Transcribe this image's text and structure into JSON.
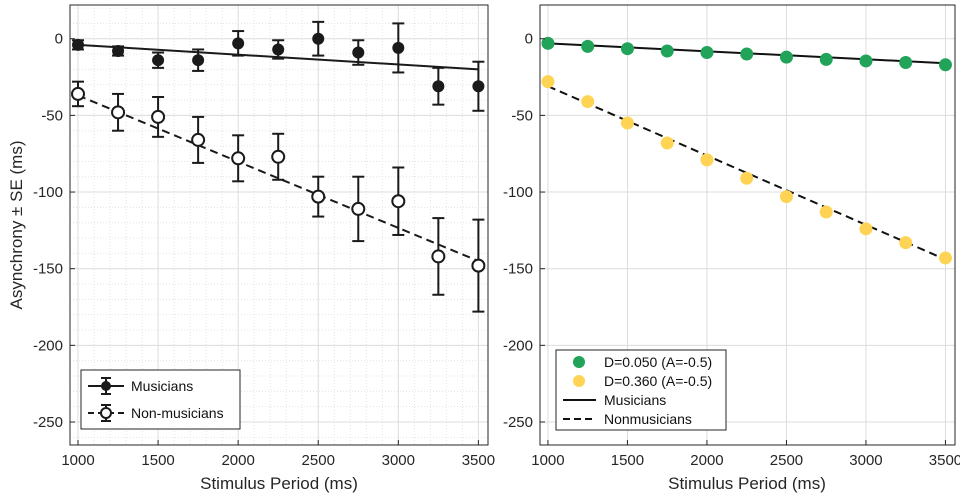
{
  "chart_data": [
    {
      "type": "scatter",
      "panel": "left",
      "xlabel": "Stimulus Period (ms)",
      "ylabel": "Asynchrony ± SE (ms)",
      "xlim": [
        950,
        3560
      ],
      "ylim": [
        -265,
        22
      ],
      "xticks": [
        1000,
        1500,
        2000,
        2500,
        3000,
        3500
      ],
      "yticks": [
        0,
        -50,
        -100,
        -150,
        -200,
        -250
      ],
      "xtick_labels": [
        "1000",
        "1500",
        "2000",
        "2500",
        "3000",
        "3500"
      ],
      "ytick_labels": [
        "0",
        "-50",
        "-100",
        "-150",
        "-200",
        "-250"
      ],
      "grid": true,
      "minor_grid": true,
      "legend_position": "bottom-left",
      "x": [
        1000,
        1250,
        1500,
        1750,
        2000,
        2250,
        2500,
        2750,
        3000,
        3250,
        3500
      ],
      "series": [
        {
          "name": "Musicians",
          "marker": "filled-circle",
          "line": "solid",
          "color": "#1a1a1a",
          "values": [
            -4,
            -8,
            -14,
            -14,
            -3,
            -7,
            0,
            -9,
            -6,
            -31,
            -31
          ],
          "se": [
            3,
            3,
            5,
            7,
            8,
            6,
            11,
            8,
            16,
            12,
            16
          ],
          "fit": {
            "x": [
              1000,
              3500
            ],
            "y": [
              -4,
              -20
            ]
          }
        },
        {
          "name": "Non-musicians",
          "marker": "open-circle",
          "line": "dashed",
          "color": "#1a1a1a",
          "values": [
            -36,
            -48,
            -51,
            -66,
            -78,
            -77,
            -103,
            -111,
            -106,
            -142,
            -148
          ],
          "se": [
            8,
            12,
            13,
            15,
            15,
            15,
            13,
            21,
            22,
            25,
            30
          ],
          "fit": {
            "x": [
              1000,
              3500
            ],
            "y": [
              -37,
              -145
            ]
          }
        }
      ]
    },
    {
      "type": "scatter",
      "panel": "right",
      "xlabel": "Stimulus Period (ms)",
      "ylabel": "",
      "xlim": [
        950,
        3560
      ],
      "ylim": [
        -265,
        22
      ],
      "xticks": [
        1000,
        1500,
        2000,
        2500,
        3000,
        3500
      ],
      "yticks": [
        0,
        -50,
        -100,
        -150,
        -200,
        -250
      ],
      "xtick_labels": [
        "1000",
        "1500",
        "2000",
        "2500",
        "3000",
        "3500"
      ],
      "ytick_labels": [
        "0",
        "-50",
        "-100",
        "-150",
        "-200",
        "-250"
      ],
      "grid": true,
      "minor_grid": false,
      "legend_position": "bottom-left",
      "x": [
        1000,
        1250,
        1500,
        1750,
        2000,
        2250,
        2500,
        2750,
        3000,
        3250,
        3500
      ],
      "series": [
        {
          "name": "D=0.050 (A=-0.5)",
          "marker": "filled-circle",
          "color": "#21a35a",
          "values": [
            -3,
            -5,
            -6.5,
            -8,
            -9,
            -10,
            -12,
            -13.5,
            -14.5,
            -15.5,
            -17
          ]
        },
        {
          "name": "D=0.360 (A=-0.5)",
          "marker": "filled-circle",
          "color": "#ffd454",
          "values": [
            -28,
            -41,
            -55,
            -68,
            -79,
            -91,
            -103,
            -113,
            -124,
            -133,
            -143
          ]
        }
      ],
      "lines": [
        {
          "name": "Musicians",
          "line": "solid",
          "x": [
            1000,
            3500
          ],
          "y": [
            -3,
            -16
          ]
        },
        {
          "name": "Nonmusicians",
          "line": "dashed",
          "x": [
            1000,
            3500
          ],
          "y": [
            -31,
            -144
          ]
        }
      ]
    }
  ]
}
